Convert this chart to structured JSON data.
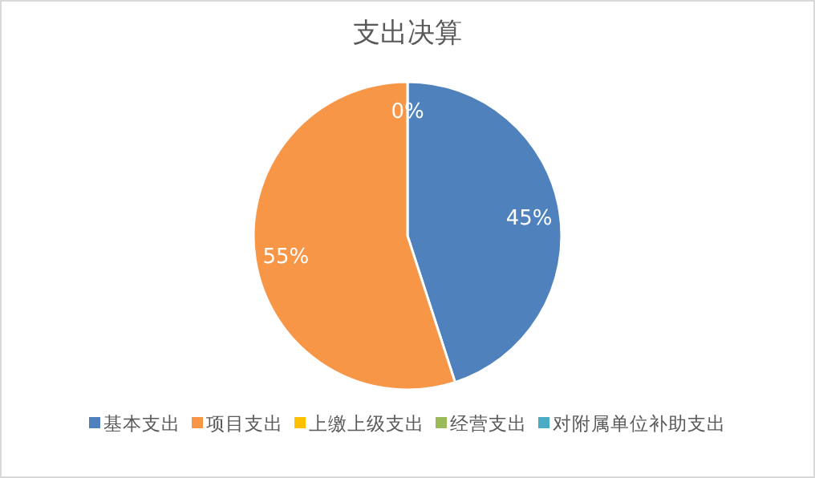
{
  "chart_data": {
    "type": "pie",
    "title": "支出决算",
    "categories": [
      "基本支出",
      "项目支出",
      "上缴上级支出",
      "经营支出",
      "对附属单位补助支出"
    ],
    "values": [
      45,
      55,
      0,
      0,
      0
    ],
    "colors": [
      "#4f81bd",
      "#f79646",
      "#ffc000",
      "#9bbb59",
      "#4bacc6"
    ],
    "value_labels": [
      "45%",
      "55%",
      "0%",
      null,
      null
    ],
    "legend": "bottom"
  }
}
